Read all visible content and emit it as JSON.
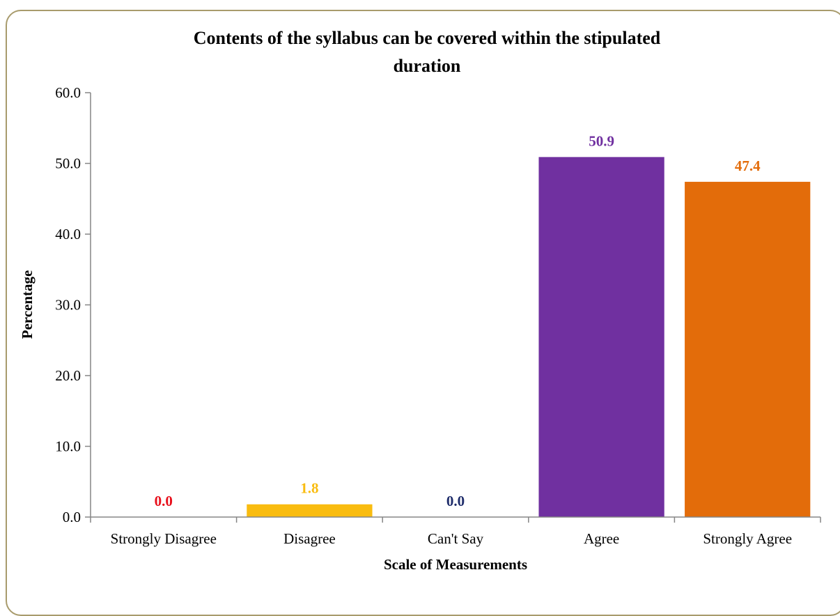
{
  "chart_data": {
    "type": "bar",
    "title_lines": [
      "Contents of the syllabus can be covered within the stipulated",
      "duration"
    ],
    "xlabel": "Scale of Measurements",
    "ylabel": "Percentage",
    "categories": [
      "Strongly Disagree",
      "Disagree",
      "Can't Say",
      "Agree",
      "Strongly Agree"
    ],
    "values": [
      0.0,
      1.8,
      0.0,
      50.9,
      47.4
    ],
    "value_labels": [
      "0.0",
      "1.8",
      "0.0",
      "50.9",
      "47.4"
    ],
    "colors": [
      "#e8101c",
      "#f9bc10",
      "#1f2d6b",
      "#7030a0",
      "#e36c0a"
    ],
    "ylim": [
      0,
      60
    ],
    "yticks": [
      0,
      10,
      20,
      30,
      40,
      50,
      60
    ],
    "ytick_labels": [
      "0.0",
      "10.0",
      "20.0",
      "30.0",
      "40.0",
      "50.0",
      "60.0"
    ],
    "grid": false,
    "legend": "none"
  }
}
